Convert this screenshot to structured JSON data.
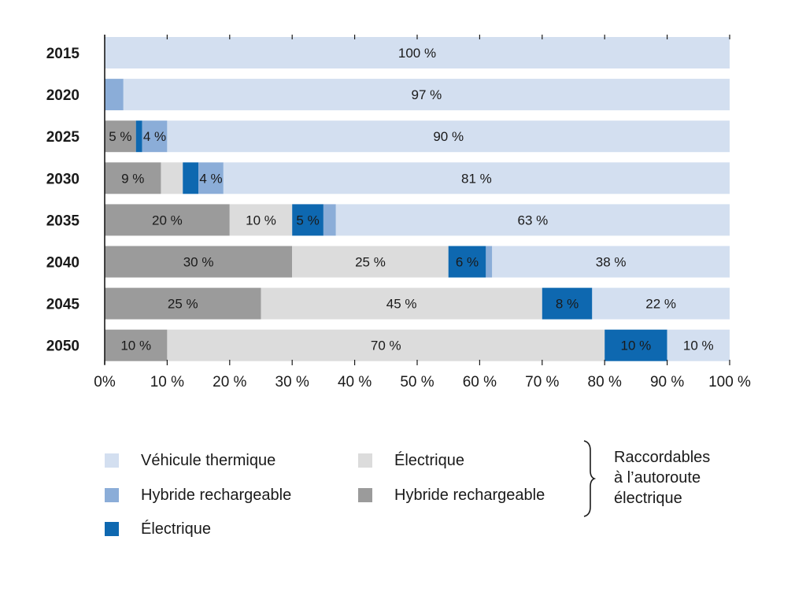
{
  "chart_data": {
    "type": "bar",
    "orientation": "horizontal",
    "stacked": true,
    "categories": [
      "2015",
      "2020",
      "2025",
      "2030",
      "2035",
      "2040",
      "2045",
      "2050"
    ],
    "series": [
      {
        "name": "Hybride rechargeable",
        "group": "Raccordables à l’autoroute électrique",
        "color": "#9b9b9b",
        "values": [
          0,
          0,
          5,
          9,
          20,
          30,
          25,
          10
        ],
        "labels": [
          "",
          "",
          "5 %",
          "9 %",
          "20 %",
          "30 %",
          "25 %",
          "10 %"
        ]
      },
      {
        "name": "Électrique",
        "group": "Raccordables à l’autoroute électrique",
        "color": "#dcdcdc",
        "values": [
          0,
          0,
          0,
          3.5,
          10,
          25,
          45,
          70
        ],
        "labels": [
          "",
          "",
          "",
          "",
          "10 %",
          "25 %",
          "45 %",
          "70 %"
        ]
      },
      {
        "name": "Électrique",
        "color": "#0e68b0",
        "values": [
          0,
          0,
          1,
          2.5,
          5,
          6,
          8,
          10
        ],
        "labels": [
          "",
          "",
          "",
          "",
          "5 %",
          "6 %",
          "8 %",
          "10 %"
        ]
      },
      {
        "name": "Hybride rechargeable",
        "color": "#8badd8",
        "values": [
          0,
          3,
          4,
          4,
          2,
          1,
          0,
          0
        ],
        "labels": [
          "",
          "",
          "4 %",
          "4 %",
          "",
          "",
          "",
          ""
        ]
      },
      {
        "name": "Véhicule thermique",
        "color": "#d3dff0",
        "values": [
          100,
          97,
          90,
          81,
          63,
          38,
          22,
          10
        ],
        "labels": [
          "100 %",
          "97 %",
          "90 %",
          "81 %",
          "63 %",
          "38 %",
          "22 %",
          "10 %"
        ]
      }
    ],
    "xticks": [
      "0%",
      "10 %",
      "20 %",
      "30 %",
      "40 %",
      "50 %",
      "60 %",
      "70 %",
      "80 %",
      "90 %",
      "100 %"
    ],
    "xlim": [
      0,
      100
    ],
    "title": "",
    "xlabel": "",
    "ylabel": "",
    "grid": false,
    "legend_position": "bottom"
  },
  "legend": {
    "items": [
      {
        "label": "Véhicule thermique",
        "color": "#d3dff0"
      },
      {
        "label": "Hybride rechargeable",
        "color": "#8badd8"
      },
      {
        "label": "Électrique",
        "color": "#0e68b0"
      },
      {
        "label": "Électrique",
        "color": "#dcdcdc"
      },
      {
        "label": "Hybride rechargeable",
        "color": "#9b9b9b"
      }
    ],
    "group_note": [
      "Raccordables",
      "à l’autoroute",
      "électrique"
    ]
  }
}
